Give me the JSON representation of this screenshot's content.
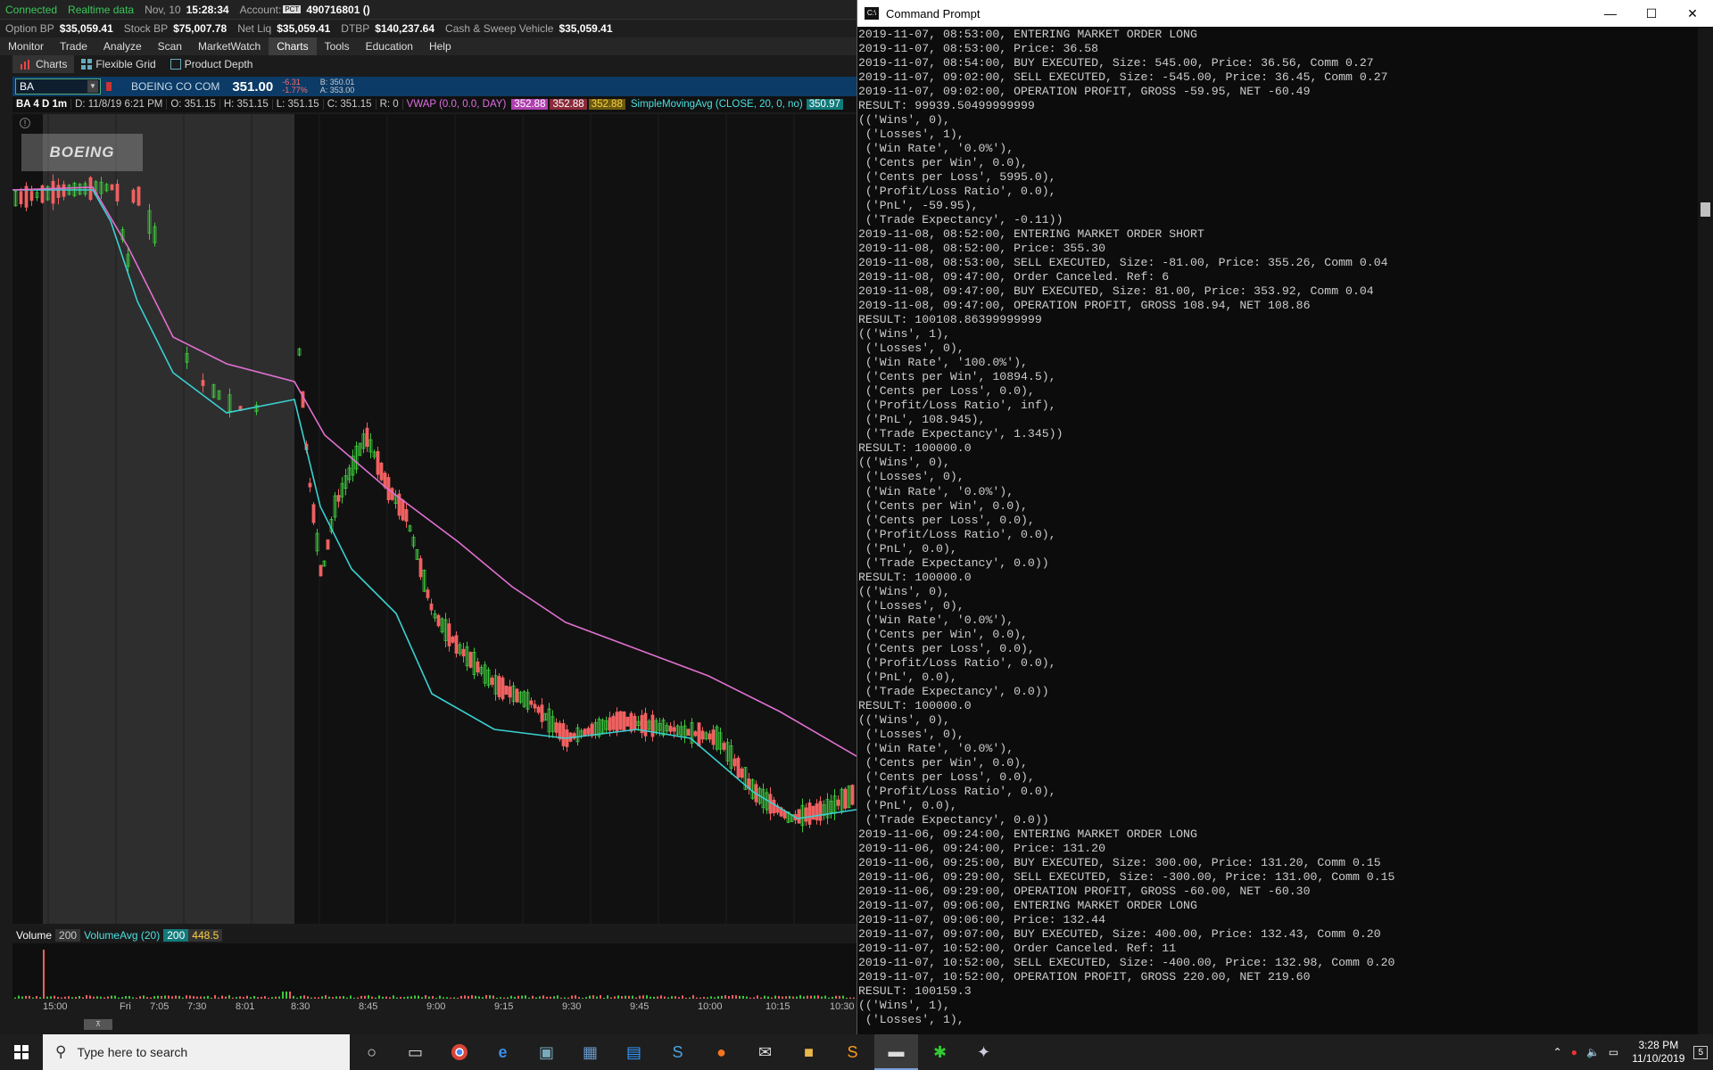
{
  "status_bar": {
    "connected": "Connected",
    "realtime": "Realtime data",
    "date": "Nov, 10",
    "time": "15:28:34",
    "account_label": "Account:",
    "account_badge": "PCT",
    "account_number": "490716801 ()"
  },
  "bp_bar": {
    "option_bp_label": "Option BP",
    "option_bp": "$35,059.41",
    "stock_bp_label": "Stock BP",
    "stock_bp": "$75,007.78",
    "net_liq_label": "Net Liq",
    "net_liq": "$35,059.41",
    "dtbp_label": "DTBP",
    "dtbp": "$140,237.64",
    "cash_label": "Cash & Sweep Vehicle",
    "cash": "$35,059.41"
  },
  "menu": [
    "Monitor",
    "Trade",
    "Analyze",
    "Scan",
    "MarketWatch",
    "Charts",
    "Tools",
    "Education",
    "Help"
  ],
  "menu_active": "Charts",
  "subtabs": [
    "Charts",
    "Flexible Grid",
    "Product Depth"
  ],
  "symbol_bar": {
    "symbol": "BA",
    "description": "BOEING CO COM",
    "last": "351.00",
    "change": "-6.31",
    "change_pct": "-1.77%",
    "bid": "B: 350.01",
    "ask": "A: 353.00"
  },
  "ohlc_bar": {
    "label": "BA 4 D 1m",
    "date": "D: 11/8/19 6:21 PM",
    "open": "O: 351.15",
    "high": "H: 351.15",
    "low": "L: 351.15",
    "close": "C: 351.15",
    "range": "R: 0",
    "vwap": "VWAP (0.0, 0.0, DAY)",
    "vwap_v1": "352.88",
    "vwap_v2": "352.88",
    "vwap_v3": "352.88",
    "sma": "SimpleMovingAvg (CLOSE, 20, 0, no)",
    "sma_v": "350.97"
  },
  "volume_bar": {
    "label": "Volume",
    "v1": "200",
    "avg_label": "VolumeAvg (20)",
    "v2": "200",
    "v3": "448.5"
  },
  "time_axis": [
    "15:00",
    "Fri",
    "7:05",
    "7:30",
    "8:01",
    "8:30",
    "8:45",
    "9:00",
    "9:15",
    "9:30",
    "9:45",
    "10:00",
    "10:15",
    "10:30"
  ],
  "logo_text": "BOEING",
  "cmd": {
    "title": "Command Prompt",
    "lines": [
      "2019-11-07, 08:53:00, ENTERING MARKET ORDER LONG",
      "2019-11-07, 08:53:00, Price: 36.58",
      "2019-11-07, 08:54:00, BUY EXECUTED, Size: 545.00, Price: 36.56, Comm 0.27",
      "2019-11-07, 09:02:00, SELL EXECUTED, Size: -545.00, Price: 36.45, Comm 0.27",
      "2019-11-07, 09:02:00, OPERATION PROFIT, GROSS -59.95, NET -60.49",
      "RESULT: 99939.50499999999",
      "(('Wins', 0),",
      " ('Losses', 1),",
      " ('Win Rate', '0.0%'),",
      " ('Cents per Win', 0.0),",
      " ('Cents per Loss', 5995.0),",
      " ('Profit/Loss Ratio', 0.0),",
      " ('PnL', -59.95),",
      " ('Trade Expectancy', -0.11))",
      "2019-11-08, 08:52:00, ENTERING MARKET ORDER SHORT",
      "2019-11-08, 08:52:00, Price: 355.30",
      "2019-11-08, 08:53:00, SELL EXECUTED, Size: -81.00, Price: 355.26, Comm 0.04",
      "2019-11-08, 09:47:00, Order Canceled. Ref: 6",
      "2019-11-08, 09:47:00, BUY EXECUTED, Size: 81.00, Price: 353.92, Comm 0.04",
      "2019-11-08, 09:47:00, OPERATION PROFIT, GROSS 108.94, NET 108.86",
      "RESULT: 100108.86399999999",
      "(('Wins', 1),",
      " ('Losses', 0),",
      " ('Win Rate', '100.0%'),",
      " ('Cents per Win', 10894.5),",
      " ('Cents per Loss', 0.0),",
      " ('Profit/Loss Ratio', inf),",
      " ('PnL', 108.945),",
      " ('Trade Expectancy', 1.345))",
      "RESULT: 100000.0",
      "(('Wins', 0),",
      " ('Losses', 0),",
      " ('Win Rate', '0.0%'),",
      " ('Cents per Win', 0.0),",
      " ('Cents per Loss', 0.0),",
      " ('Profit/Loss Ratio', 0.0),",
      " ('PnL', 0.0),",
      " ('Trade Expectancy', 0.0))",
      "RESULT: 100000.0",
      "(('Wins', 0),",
      " ('Losses', 0),",
      " ('Win Rate', '0.0%'),",
      " ('Cents per Win', 0.0),",
      " ('Cents per Loss', 0.0),",
      " ('Profit/Loss Ratio', 0.0),",
      " ('PnL', 0.0),",
      " ('Trade Expectancy', 0.0))",
      "RESULT: 100000.0",
      "(('Wins', 0),",
      " ('Losses', 0),",
      " ('Win Rate', '0.0%'),",
      " ('Cents per Win', 0.0),",
      " ('Cents per Loss', 0.0),",
      " ('Profit/Loss Ratio', 0.0),",
      " ('PnL', 0.0),",
      " ('Trade Expectancy', 0.0))",
      "2019-11-06, 09:24:00, ENTERING MARKET ORDER LONG",
      "2019-11-06, 09:24:00, Price: 131.20",
      "2019-11-06, 09:25:00, BUY EXECUTED, Size: 300.00, Price: 131.20, Comm 0.15",
      "2019-11-06, 09:29:00, SELL EXECUTED, Size: -300.00, Price: 131.00, Comm 0.15",
      "2019-11-06, 09:29:00, OPERATION PROFIT, GROSS -60.00, NET -60.30",
      "2019-11-07, 09:06:00, ENTERING MARKET ORDER LONG",
      "2019-11-07, 09:06:00, Price: 132.44",
      "2019-11-07, 09:07:00, BUY EXECUTED, Size: 400.00, Price: 132.43, Comm 0.20",
      "2019-11-07, 10:52:00, Order Canceled. Ref: 11",
      "2019-11-07, 10:52:00, SELL EXECUTED, Size: -400.00, Price: 132.98, Comm 0.20",
      "2019-11-07, 10:52:00, OPERATION PROFIT, GROSS 220.00, NET 219.60",
      "RESULT: 100159.3",
      "(('Wins', 1),",
      " ('Losses', 1),"
    ]
  },
  "taskbar": {
    "search_placeholder": "Type here to search",
    "time": "3:28 PM",
    "date": "11/10/2019",
    "notifications": "5"
  }
}
